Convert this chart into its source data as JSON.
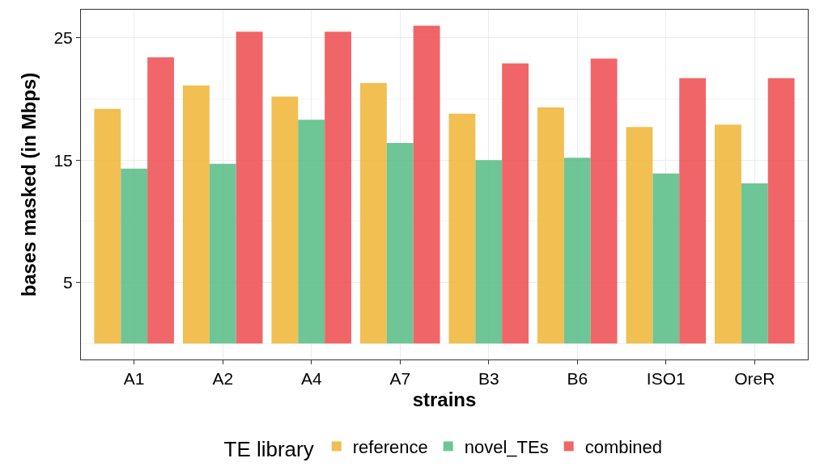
{
  "chart_data": {
    "type": "bar",
    "xlabel": "strains",
    "ylabel": "bases masked (in Mbps)",
    "legend_title": "TE library",
    "categories": [
      "A1",
      "A2",
      "A4",
      "A7",
      "B3",
      "B6",
      "ISO1",
      "OreR"
    ],
    "series": [
      {
        "name": "reference",
        "color": "#f0b940",
        "values": [
          19.2,
          21.1,
          20.2,
          21.3,
          18.8,
          19.3,
          17.7,
          17.9
        ]
      },
      {
        "name": "novel_TEs",
        "color": "#5fbf8a",
        "values": [
          14.3,
          14.7,
          18.3,
          16.4,
          15.0,
          15.2,
          13.9,
          13.1
        ]
      },
      {
        "name": "combined",
        "color": "#ef5558",
        "values": [
          23.4,
          25.5,
          25.5,
          26.0,
          22.9,
          23.3,
          21.7,
          21.7
        ]
      }
    ],
    "ylim": [
      -1.3,
      27.3
    ],
    "yticks": [
      5,
      15,
      25
    ],
    "grid": true,
    "legend": "bottom"
  }
}
